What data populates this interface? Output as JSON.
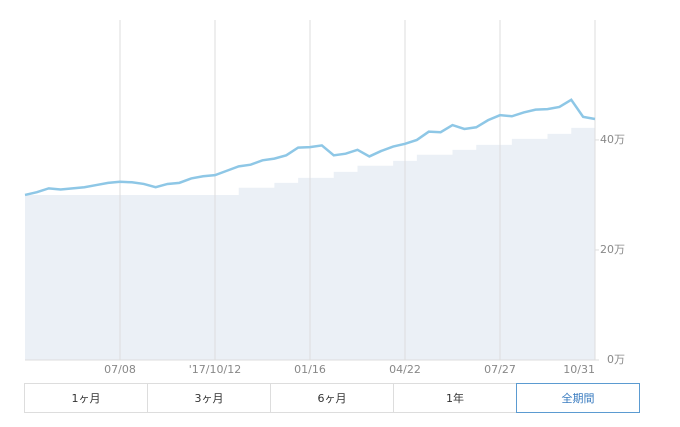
{
  "chart_data": {
    "type": "line",
    "x": [
      0,
      1,
      2,
      3,
      4,
      5,
      6,
      7,
      8,
      9,
      10,
      11,
      12,
      13,
      14,
      15,
      16,
      17,
      18,
      19,
      20,
      21,
      22,
      23,
      24,
      25,
      26,
      27,
      28,
      29,
      30,
      31,
      32,
      33,
      34,
      35,
      36,
      37,
      38,
      39,
      40,
      41,
      42,
      43,
      44,
      45,
      46,
      47,
      48
    ],
    "line": {
      "color": "#8ec7e6",
      "values": [
        30.0,
        30.5,
        31.2,
        31.0,
        31.2,
        31.4,
        31.8,
        32.2,
        32.4,
        32.3,
        32.0,
        31.4,
        32.0,
        32.2,
        33.0,
        33.4,
        33.6,
        34.4,
        35.2,
        35.5,
        36.3,
        36.6,
        37.2,
        38.6,
        38.7,
        39.0,
        37.2,
        37.5,
        38.2,
        37.0,
        38.0,
        38.8,
        39.3,
        40.0,
        41.5,
        41.4,
        42.7,
        42.0,
        42.3,
        43.6,
        44.5,
        44.3,
        45.0,
        45.5,
        45.6,
        46.0,
        47.3,
        44.2,
        43.8
      ]
    },
    "area": {
      "color": "#ebf0f6",
      "values": [
        30,
        30,
        30,
        30,
        30,
        30,
        30,
        30,
        30,
        30,
        30,
        30,
        30,
        30,
        30,
        30,
        30,
        30,
        31.3,
        31.3,
        31.3,
        32.2,
        32.2,
        33.1,
        33.1,
        33.1,
        34.2,
        34.2,
        35.3,
        35.3,
        35.3,
        36.2,
        36.2,
        37.3,
        37.3,
        37.3,
        38.2,
        38.2,
        39.1,
        39.1,
        39.1,
        40.2,
        40.2,
        40.2,
        41.1,
        41.1,
        42.2,
        42.2,
        42.2
      ]
    },
    "xlim": [
      0,
      48
    ],
    "xticks": [
      {
        "value": 8,
        "label": "07/08"
      },
      {
        "value": 16,
        "label": "'17/10/12"
      },
      {
        "value": 24,
        "label": "01/16"
      },
      {
        "value": 32,
        "label": "04/22"
      },
      {
        "value": 40,
        "label": "07/27"
      },
      {
        "value": 48,
        "label": "10/31"
      }
    ],
    "ylim": [
      0,
      61.8
    ],
    "yticks": [
      {
        "value": 0,
        "label": "0万"
      },
      {
        "value": 20,
        "label": "20万"
      },
      {
        "value": 40,
        "label": "40万"
      }
    ],
    "grid": true
  },
  "buttons": [
    "1ヶ月",
    "3ヶ月",
    "6ヶ月",
    "1年",
    "全期間"
  ],
  "selected_button": 4
}
